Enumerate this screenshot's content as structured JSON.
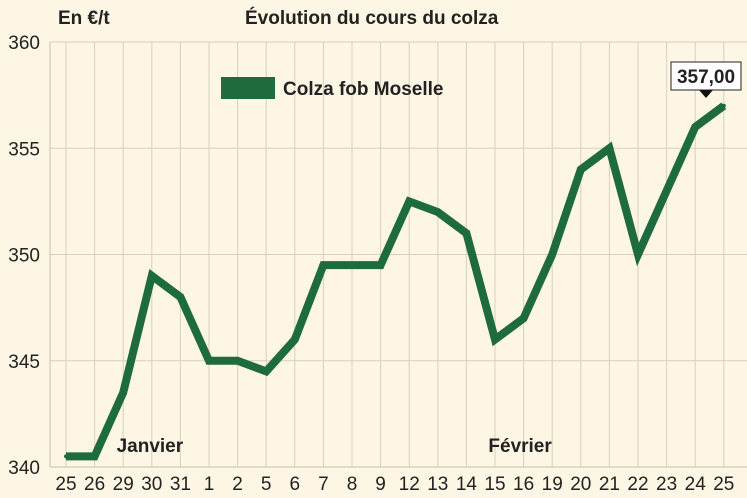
{
  "chart_data": {
    "type": "line",
    "title": "Évolution du cours du colza",
    "ylabel": "En €/t",
    "ylim": [
      340,
      360
    ],
    "yticks": [
      340,
      345,
      350,
      355,
      360
    ],
    "grid": true,
    "legend_position": "top-left",
    "month_labels": [
      {
        "label": "Janvier",
        "at_index": 1
      },
      {
        "label": "Février",
        "at_index": 14
      }
    ],
    "categories": [
      "25",
      "26",
      "29",
      "30",
      "31",
      "1",
      "2",
      "5",
      "6",
      "7",
      "8",
      "9",
      "12",
      "13",
      "14",
      "15",
      "16",
      "19",
      "20",
      "21",
      "22",
      "23",
      "24",
      "25"
    ],
    "series": [
      {
        "name": "Colza fob Moselle",
        "color": "#1e6b40",
        "values": [
          340.5,
          340.5,
          343.5,
          349,
          348,
          345,
          345,
          344.5,
          346,
          349.5,
          349.5,
          349.5,
          352.5,
          352,
          351,
          346,
          347,
          350,
          354,
          355,
          350,
          353,
          356,
          357
        ]
      }
    ],
    "annotation": {
      "text": "357,00",
      "at_index": 23
    },
    "colors": {
      "background": "#fdf6e4",
      "grid": "#d8d0bc",
      "line": "#1e6b40"
    }
  }
}
